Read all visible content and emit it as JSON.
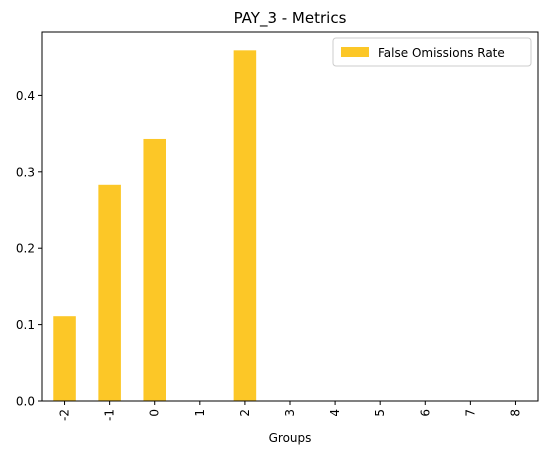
{
  "chart_data": {
    "type": "bar",
    "title": "PAY_3 - Metrics",
    "xlabel": "Groups",
    "ylabel": "",
    "categories": [
      "-2",
      "-1",
      "0",
      "1",
      "2",
      "3",
      "4",
      "5",
      "6",
      "7",
      "8"
    ],
    "series": [
      {
        "name": "False Omissions Rate",
        "color": "#fcc727",
        "values": [
          0.111,
          0.283,
          0.343,
          0,
          0.459,
          0,
          0,
          0,
          0,
          0,
          0
        ]
      }
    ],
    "ylim": [
      0,
      0.483
    ],
    "yticks": [
      0.0,
      0.1,
      0.2,
      0.3,
      0.4
    ],
    "ytick_labels": [
      "0.0",
      "0.1",
      "0.2",
      "0.3",
      "0.4"
    ],
    "grid": false,
    "legend_position": "top-right"
  }
}
